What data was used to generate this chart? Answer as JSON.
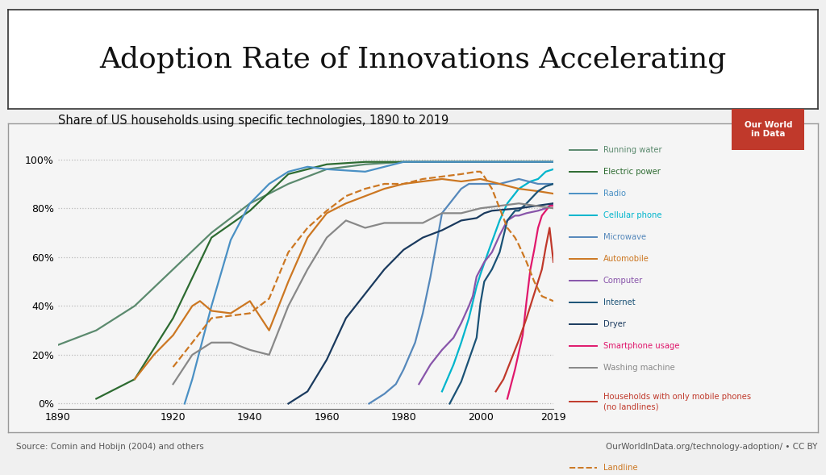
{
  "title": "Adoption Rate of Innovations Accelerating",
  "subtitle": "Share of US households using specific technologies, 1890 to 2019",
  "source_left": "Source: Comin and Hobijn (2004) and others",
  "source_right": "OurWorldInData.org/technology-adoption/ • CC BY",
  "owid_label": "Our World\nin Data",
  "series": {
    "running_water": {
      "label": "Running water",
      "color": "#5b8a6e",
      "data": [
        [
          1890,
          24
        ],
        [
          1900,
          30
        ],
        [
          1910,
          40
        ],
        [
          1920,
          55
        ],
        [
          1930,
          70
        ],
        [
          1940,
          82
        ],
        [
          1950,
          90
        ],
        [
          1960,
          96
        ],
        [
          1970,
          98
        ],
        [
          1980,
          99
        ],
        [
          1990,
          99
        ],
        [
          2000,
          99
        ],
        [
          2019,
          99
        ]
      ]
    },
    "electric_power": {
      "label": "Electric power",
      "color": "#2d6b31",
      "data": [
        [
          1900,
          2
        ],
        [
          1910,
          10
        ],
        [
          1920,
          35
        ],
        [
          1930,
          68
        ],
        [
          1940,
          79
        ],
        [
          1950,
          94
        ],
        [
          1960,
          98
        ],
        [
          1970,
          99
        ],
        [
          1980,
          99
        ],
        [
          1990,
          99
        ],
        [
          2000,
          99
        ],
        [
          2019,
          99
        ]
      ]
    },
    "radio": {
      "label": "Radio",
      "color": "#4a90c4",
      "data": [
        [
          1923,
          0
        ],
        [
          1925,
          10
        ],
        [
          1930,
          40
        ],
        [
          1935,
          67
        ],
        [
          1940,
          82
        ],
        [
          1945,
          90
        ],
        [
          1950,
          95
        ],
        [
          1955,
          97
        ],
        [
          1960,
          96
        ],
        [
          1970,
          95
        ],
        [
          1975,
          97
        ],
        [
          1980,
          99
        ],
        [
          1990,
          99
        ],
        [
          2000,
          99
        ],
        [
          2019,
          99
        ]
      ]
    },
    "cellular_phone": {
      "label": "Cellular phone",
      "color": "#00b5cc",
      "data": [
        [
          1990,
          5
        ],
        [
          1993,
          16
        ],
        [
          1995,
          25
        ],
        [
          1997,
          35
        ],
        [
          1999,
          48
        ],
        [
          2000,
          53
        ],
        [
          2002,
          62
        ],
        [
          2005,
          75
        ],
        [
          2007,
          82
        ],
        [
          2010,
          88
        ],
        [
          2013,
          91
        ],
        [
          2015,
          92
        ],
        [
          2017,
          95
        ],
        [
          2019,
          96
        ]
      ]
    },
    "microwave": {
      "label": "Microwave",
      "color": "#5588bb",
      "data": [
        [
          1971,
          0
        ],
        [
          1975,
          4
        ],
        [
          1978,
          8
        ],
        [
          1980,
          14
        ],
        [
          1983,
          25
        ],
        [
          1985,
          37
        ],
        [
          1987,
          52
        ],
        [
          1990,
          78
        ],
        [
          1992,
          82
        ],
        [
          1995,
          88
        ],
        [
          1997,
          90
        ],
        [
          2000,
          90
        ],
        [
          2005,
          90
        ],
        [
          2010,
          92
        ],
        [
          2015,
          90
        ],
        [
          2019,
          90
        ]
      ]
    },
    "automobile": {
      "label": "Automobile",
      "color": "#cc7722",
      "data": [
        [
          1910,
          10
        ],
        [
          1915,
          20
        ],
        [
          1920,
          28
        ],
        [
          1925,
          40
        ],
        [
          1927,
          42
        ],
        [
          1930,
          38
        ],
        [
          1935,
          37
        ],
        [
          1940,
          42
        ],
        [
          1945,
          30
        ],
        [
          1950,
          50
        ],
        [
          1955,
          68
        ],
        [
          1960,
          78
        ],
        [
          1965,
          82
        ],
        [
          1970,
          85
        ],
        [
          1975,
          88
        ],
        [
          1980,
          90
        ],
        [
          1985,
          91
        ],
        [
          1990,
          92
        ],
        [
          1995,
          91
        ],
        [
          2000,
          92
        ],
        [
          2005,
          90
        ],
        [
          2010,
          88
        ],
        [
          2015,
          87
        ],
        [
          2019,
          86
        ]
      ]
    },
    "computer": {
      "label": "Computer",
      "color": "#8855aa",
      "data": [
        [
          1984,
          8
        ],
        [
          1987,
          16
        ],
        [
          1990,
          22
        ],
        [
          1993,
          27
        ],
        [
          1995,
          33
        ],
        [
          1997,
          40
        ],
        [
          1998,
          44
        ],
        [
          1999,
          52
        ],
        [
          2000,
          55
        ],
        [
          2001,
          58
        ],
        [
          2003,
          62
        ],
        [
          2005,
          69
        ],
        [
          2007,
          75
        ],
        [
          2009,
          77
        ],
        [
          2010,
          77
        ],
        [
          2012,
          78
        ],
        [
          2015,
          79
        ],
        [
          2017,
          80
        ],
        [
          2019,
          82
        ]
      ]
    },
    "internet": {
      "label": "Internet",
      "color": "#1a5276",
      "data": [
        [
          1992,
          0
        ],
        [
          1995,
          9
        ],
        [
          1997,
          18
        ],
        [
          1999,
          27
        ],
        [
          2000,
          41
        ],
        [
          2001,
          50
        ],
        [
          2003,
          55
        ],
        [
          2005,
          62
        ],
        [
          2007,
          75
        ],
        [
          2009,
          79
        ],
        [
          2010,
          79
        ],
        [
          2012,
          82
        ],
        [
          2015,
          87
        ],
        [
          2017,
          89
        ],
        [
          2019,
          90
        ]
      ]
    },
    "dryer": {
      "label": "Dryer",
      "color": "#1a3a5e",
      "data": [
        [
          1950,
          0
        ],
        [
          1955,
          5
        ],
        [
          1960,
          18
        ],
        [
          1965,
          35
        ],
        [
          1970,
          45
        ],
        [
          1975,
          55
        ],
        [
          1980,
          63
        ],
        [
          1985,
          68
        ],
        [
          1990,
          71
        ],
        [
          1995,
          75
        ],
        [
          1999,
          76
        ],
        [
          2001,
          78
        ],
        [
          2003,
          79
        ],
        [
          2010,
          80
        ],
        [
          2019,
          82
        ]
      ]
    },
    "smartphone": {
      "label": "Smartphone usage",
      "color": "#e0186c",
      "data": [
        [
          2007,
          2
        ],
        [
          2009,
          14
        ],
        [
          2011,
          28
        ],
        [
          2012,
          42
        ],
        [
          2013,
          55
        ],
        [
          2014,
          63
        ],
        [
          2015,
          72
        ],
        [
          2016,
          77
        ],
        [
          2017,
          79
        ],
        [
          2018,
          81
        ],
        [
          2019,
          81
        ]
      ]
    },
    "washing_machine": {
      "label": "Washing machine",
      "color": "#888888",
      "data": [
        [
          1920,
          8
        ],
        [
          1925,
          20
        ],
        [
          1930,
          25
        ],
        [
          1935,
          25
        ],
        [
          1940,
          22
        ],
        [
          1945,
          20
        ],
        [
          1950,
          40
        ],
        [
          1955,
          55
        ],
        [
          1960,
          68
        ],
        [
          1965,
          75
        ],
        [
          1970,
          72
        ],
        [
          1975,
          74
        ],
        [
          1980,
          74
        ],
        [
          1985,
          74
        ],
        [
          1990,
          78
        ],
        [
          1995,
          78
        ],
        [
          2000,
          80
        ],
        [
          2005,
          81
        ],
        [
          2010,
          82
        ],
        [
          2019,
          80
        ]
      ]
    },
    "mobile_only": {
      "label": "Households with only mobile phones\n(no landlines)",
      "color": "#c0392b",
      "data": [
        [
          2004,
          5
        ],
        [
          2006,
          10
        ],
        [
          2008,
          18
        ],
        [
          2010,
          26
        ],
        [
          2012,
          35
        ],
        [
          2014,
          45
        ],
        [
          2016,
          55
        ],
        [
          2017,
          64
        ],
        [
          2018,
          72
        ],
        [
          2019,
          58
        ]
      ]
    },
    "landline": {
      "label": "Landline",
      "color": "#cc7722",
      "linestyle": "dashed",
      "data": [
        [
          1920,
          15
        ],
        [
          1930,
          35
        ],
        [
          1940,
          37
        ],
        [
          1945,
          43
        ],
        [
          1950,
          62
        ],
        [
          1955,
          72
        ],
        [
          1960,
          79
        ],
        [
          1965,
          85
        ],
        [
          1970,
          88
        ],
        [
          1975,
          90
        ],
        [
          1980,
          90
        ],
        [
          1985,
          92
        ],
        [
          1990,
          93
        ],
        [
          1995,
          94
        ],
        [
          1999,
          95
        ],
        [
          2000,
          95
        ],
        [
          2001,
          93
        ],
        [
          2003,
          88
        ],
        [
          2005,
          80
        ],
        [
          2007,
          72
        ],
        [
          2009,
          68
        ],
        [
          2010,
          65
        ],
        [
          2012,
          58
        ],
        [
          2014,
          50
        ],
        [
          2016,
          44
        ],
        [
          2019,
          42
        ]
      ]
    }
  },
  "xlim": [
    1890,
    2019
  ],
  "ylim": [
    -2,
    105
  ],
  "yticks": [
    0,
    20,
    40,
    60,
    80,
    100
  ],
  "ytick_labels": [
    "0%",
    "20%",
    "40%",
    "60%",
    "80%",
    "100%"
  ],
  "xticks": [
    1890,
    1920,
    1940,
    1960,
    1980,
    2000,
    2019
  ],
  "background_color": "#f0f0f0",
  "title_box_color": "#ffffff",
  "plot_bg_color": "#f5f5f5",
  "grid_color": "#bbbbbb"
}
